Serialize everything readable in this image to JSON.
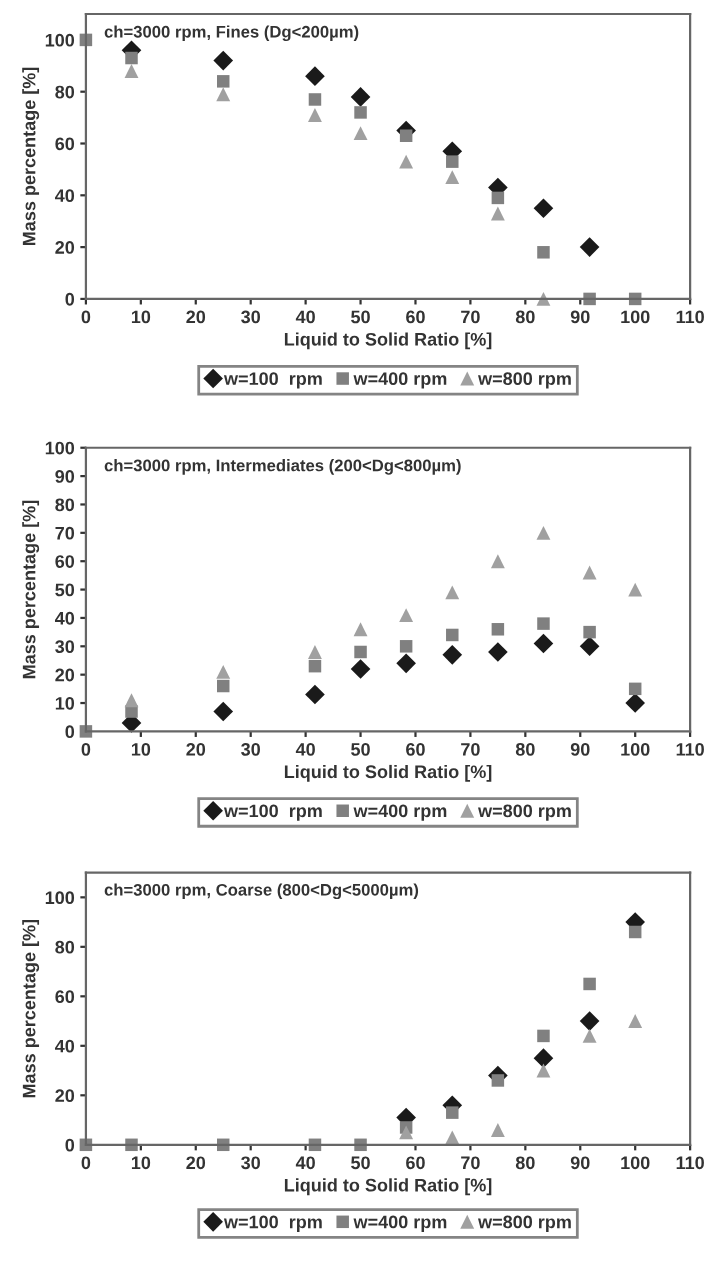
{
  "chart_data": [
    {
      "type": "scatter",
      "title": "ch=3000 rpm, Fines (Dg<200µm)",
      "xlabel": "Liquid to Solid Ratio [%]",
      "ylabel": "Mass percentage [%]",
      "x": [
        0,
        8.3,
        25,
        41.7,
        50,
        58.3,
        66.7,
        75,
        83.3,
        91.7,
        100
      ],
      "series": [
        {
          "name": "w=100  rpm",
          "color": "#1a1a1a",
          "marker": "diamond",
          "values": [
            null,
            96,
            92,
            86,
            78,
            65,
            57,
            43,
            35,
            20,
            null
          ]
        },
        {
          "name": "w=400 rpm",
          "color": "#808080",
          "marker": "square",
          "values": [
            100,
            93,
            84,
            77,
            72,
            63,
            53,
            39,
            18,
            0,
            0
          ]
        },
        {
          "name": "w=800 rpm",
          "color": "#a0a0a0",
          "marker": "triangle",
          "values": [
            null,
            88,
            79,
            71,
            64,
            53,
            47,
            33,
            0,
            null,
            null
          ]
        }
      ],
      "xlim": [
        0,
        110
      ],
      "xticks": [
        0,
        10,
        20,
        30,
        40,
        50,
        60,
        70,
        80,
        90,
        100,
        110
      ],
      "ylim": [
        0,
        110
      ],
      "yticks": [
        0,
        20,
        40,
        60,
        80,
        100
      ],
      "grid": false,
      "legend": "bottom"
    },
    {
      "type": "scatter",
      "title": "ch=3000 rpm, Intermediates (200<Dg<800µm)",
      "xlabel": "Liquid to Solid Ratio [%]",
      "ylabel": "Mass percentage [%]",
      "x": [
        0,
        8.3,
        25,
        41.7,
        50,
        58.3,
        66.7,
        75,
        83.3,
        91.7,
        100
      ],
      "series": [
        {
          "name": "w=100  rpm",
          "color": "#1a1a1a",
          "marker": "diamond",
          "values": [
            null,
            3,
            7,
            13,
            22,
            24,
            27,
            28,
            31,
            30,
            10
          ]
        },
        {
          "name": "w=400 rpm",
          "color": "#808080",
          "marker": "square",
          "values": [
            0,
            7,
            16,
            23,
            28,
            30,
            34,
            36,
            38,
            35,
            15
          ]
        },
        {
          "name": "w=800 rpm",
          "color": "#a0a0a0",
          "marker": "triangle",
          "values": [
            null,
            11,
            21,
            28,
            36,
            41,
            49,
            60,
            70,
            56,
            50
          ]
        }
      ],
      "xlim": [
        0,
        110
      ],
      "xticks": [
        0,
        10,
        20,
        30,
        40,
        50,
        60,
        70,
        80,
        90,
        100,
        110
      ],
      "ylim": [
        0,
        100
      ],
      "yticks": [
        0,
        10,
        20,
        30,
        40,
        50,
        60,
        70,
        80,
        90,
        100
      ],
      "grid": false,
      "legend": "bottom"
    },
    {
      "type": "scatter",
      "title": "ch=3000 rpm, Coarse (800<Dg<5000µm)",
      "xlabel": "Liquid to Solid Ratio [%]",
      "ylabel": "Mass percentage [%]",
      "x": [
        0,
        8.3,
        25,
        41.7,
        50,
        58.3,
        66.7,
        75,
        83.3,
        91.7,
        100
      ],
      "series": [
        {
          "name": "w=100  rpm",
          "color": "#1a1a1a",
          "marker": "diamond",
          "values": [
            null,
            null,
            null,
            null,
            null,
            11,
            16,
            28,
            35,
            50,
            90
          ]
        },
        {
          "name": "w=400 rpm",
          "color": "#808080",
          "marker": "square",
          "values": [
            0,
            0,
            0,
            0,
            0,
            7,
            13,
            26,
            44,
            65,
            86
          ]
        },
        {
          "name": "w=800 rpm",
          "color": "#a0a0a0",
          "marker": "triangle",
          "values": [
            null,
            null,
            null,
            null,
            null,
            5,
            3,
            6,
            30,
            44,
            50
          ]
        }
      ],
      "xlim": [
        0,
        110
      ],
      "xticks": [
        0,
        10,
        20,
        30,
        40,
        50,
        60,
        70,
        80,
        90,
        100,
        110
      ],
      "ylim": [
        0,
        110
      ],
      "yticks": [
        0,
        20,
        40,
        60,
        80,
        100
      ],
      "grid": false,
      "legend": "bottom"
    }
  ]
}
